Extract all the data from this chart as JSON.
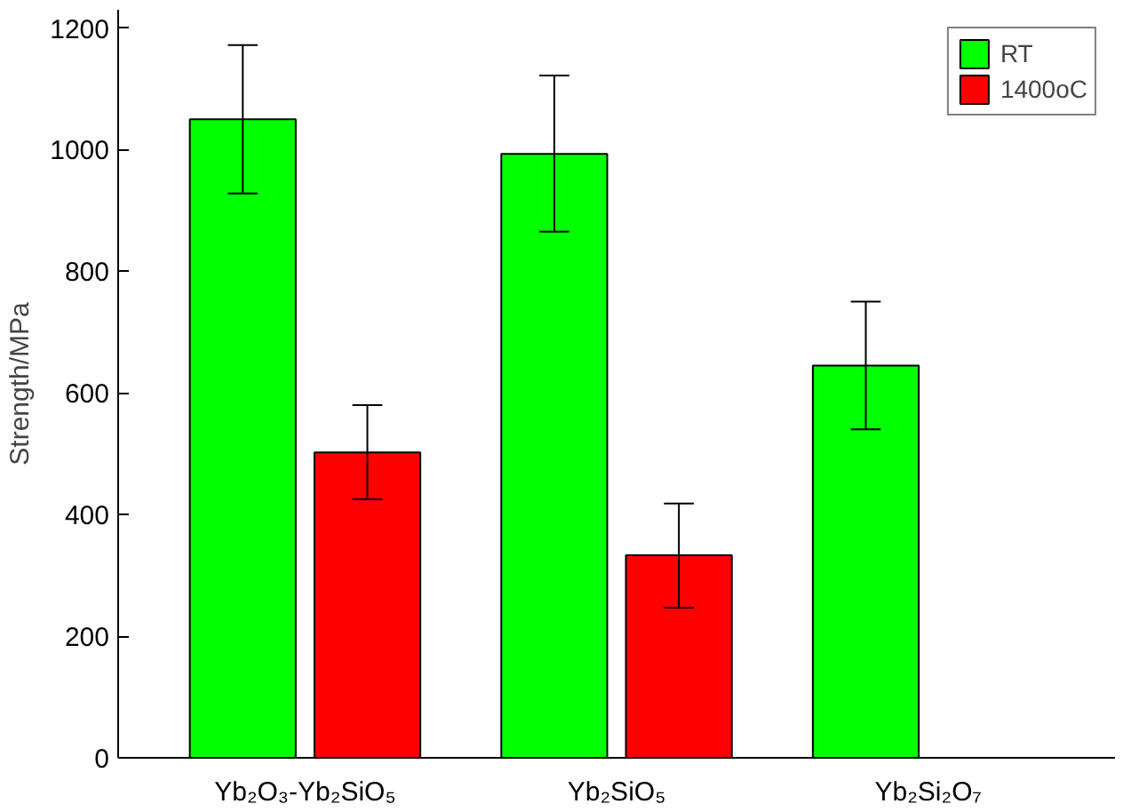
{
  "chart_data": {
    "type": "bar",
    "ylabel": "Strength/MPa",
    "categories": [
      "Yb₂O₃-Yb₂SiO₅",
      "Yb₂SiO₅",
      "Yb₂Si₂O₇"
    ],
    "series": [
      {
        "name": "RT",
        "color": "#00ff00",
        "values": [
          1050,
          993,
          645
        ],
        "errors": [
          [
            928,
            1172
          ],
          [
            865,
            1122
          ],
          [
            540,
            750
          ]
        ]
      },
      {
        "name": "1400oC",
        "color": "#ff0000",
        "values": [
          502,
          333,
          null
        ],
        "errors": [
          [
            425,
            580
          ],
          [
            247,
            418
          ],
          null
        ]
      }
    ],
    "ylim": [
      0,
      1230
    ],
    "yticks": [
      0,
      200,
      400,
      600,
      800,
      1000,
      1200
    ],
    "grid": false,
    "legend": "top right"
  }
}
